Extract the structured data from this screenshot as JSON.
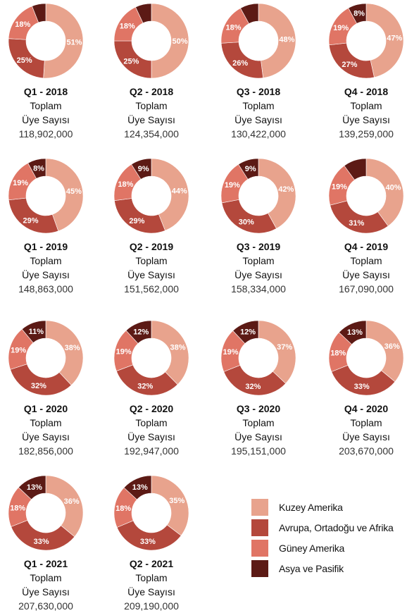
{
  "chart_data": {
    "type": "donut",
    "series_names": [
      "Kuzey Amerika",
      "Avrupa, Ortadoğu ve Afrika",
      "Güney Amerika",
      "Asya ve Pasifik"
    ],
    "colors": [
      "#e8a38d",
      "#b4483c",
      "#e07565",
      "#5c1a15"
    ],
    "label_line1": "Toplam",
    "label_line2": "Üye Sayısı",
    "quarters": [
      {
        "name": "Q1 - 2018",
        "total": "118,902,000",
        "values": [
          51,
          25,
          18,
          6
        ],
        "labels": [
          "51%",
          "25%",
          "18%",
          ""
        ]
      },
      {
        "name": "Q2 - 2018",
        "total": "124,354,000",
        "values": [
          50,
          25,
          18,
          7
        ],
        "labels": [
          "50%",
          "25%",
          "18%",
          ""
        ]
      },
      {
        "name": "Q3 - 2018",
        "total": "130,422,000",
        "values": [
          48,
          26,
          18,
          8
        ],
        "labels": [
          "48%",
          "26%",
          "18%",
          ""
        ]
      },
      {
        "name": "Q4 - 2018",
        "total": "139,259,000",
        "values": [
          47,
          27,
          19,
          8
        ],
        "labels": [
          "47%",
          "27%",
          "19%",
          "8%"
        ]
      },
      {
        "name": "Q1 - 2019",
        "total": "148,863,000",
        "values": [
          45,
          29,
          19,
          8
        ],
        "labels": [
          "45%",
          "29%",
          "19%",
          "8%"
        ]
      },
      {
        "name": "Q2 - 2019",
        "total": "151,562,000",
        "values": [
          44,
          29,
          18,
          9
        ],
        "labels": [
          "44%",
          "29%",
          "18%",
          "9%"
        ]
      },
      {
        "name": "Q3 - 2019",
        "total": "158,334,000",
        "values": [
          42,
          30,
          19,
          9
        ],
        "labels": [
          "42%",
          "30%",
          "19%",
          "9%"
        ]
      },
      {
        "name": "Q4 - 2019",
        "total": "167,090,000",
        "values": [
          40,
          31,
          19,
          10
        ],
        "labels": [
          "40%",
          "31%",
          "19%",
          ""
        ]
      },
      {
        "name": "Q1 - 2020",
        "total": "182,856,000",
        "values": [
          38,
          32,
          19,
          11
        ],
        "labels": [
          "38%",
          "32%",
          "19%",
          "11%"
        ]
      },
      {
        "name": "Q2 - 2020",
        "total": "192,947,000",
        "values": [
          38,
          32,
          19,
          12
        ],
        "labels": [
          "38%",
          "32%",
          "19%",
          "12%"
        ]
      },
      {
        "name": "Q3 - 2020",
        "total": "195,151,000",
        "values": [
          37,
          32,
          19,
          12
        ],
        "labels": [
          "37%",
          "32%",
          "19%",
          "12%"
        ]
      },
      {
        "name": "Q4 - 2020",
        "total": "203,670,000",
        "values": [
          36,
          33,
          18,
          13
        ],
        "labels": [
          "36%",
          "33%",
          "18%",
          "13%"
        ]
      },
      {
        "name": "Q1 - 2021",
        "total": "207,630,000",
        "values": [
          36,
          33,
          18,
          13
        ],
        "labels": [
          "36%",
          "33%",
          "18%",
          "13%"
        ]
      },
      {
        "name": "Q2 - 2021",
        "total": "209,190,000",
        "values": [
          35,
          33,
          18,
          13
        ],
        "labels": [
          "35%",
          "33%",
          "18%",
          "13%"
        ]
      }
    ]
  },
  "legend": [
    {
      "label": "Kuzey Amerika",
      "color": "#e8a38d"
    },
    {
      "label": "Avrupa, Ortadoğu ve Afrika",
      "color": "#b4483c"
    },
    {
      "label": "Güney Amerika",
      "color": "#e07565"
    },
    {
      "label": "Asya ve Pasifik",
      "color": "#5c1a15"
    }
  ]
}
